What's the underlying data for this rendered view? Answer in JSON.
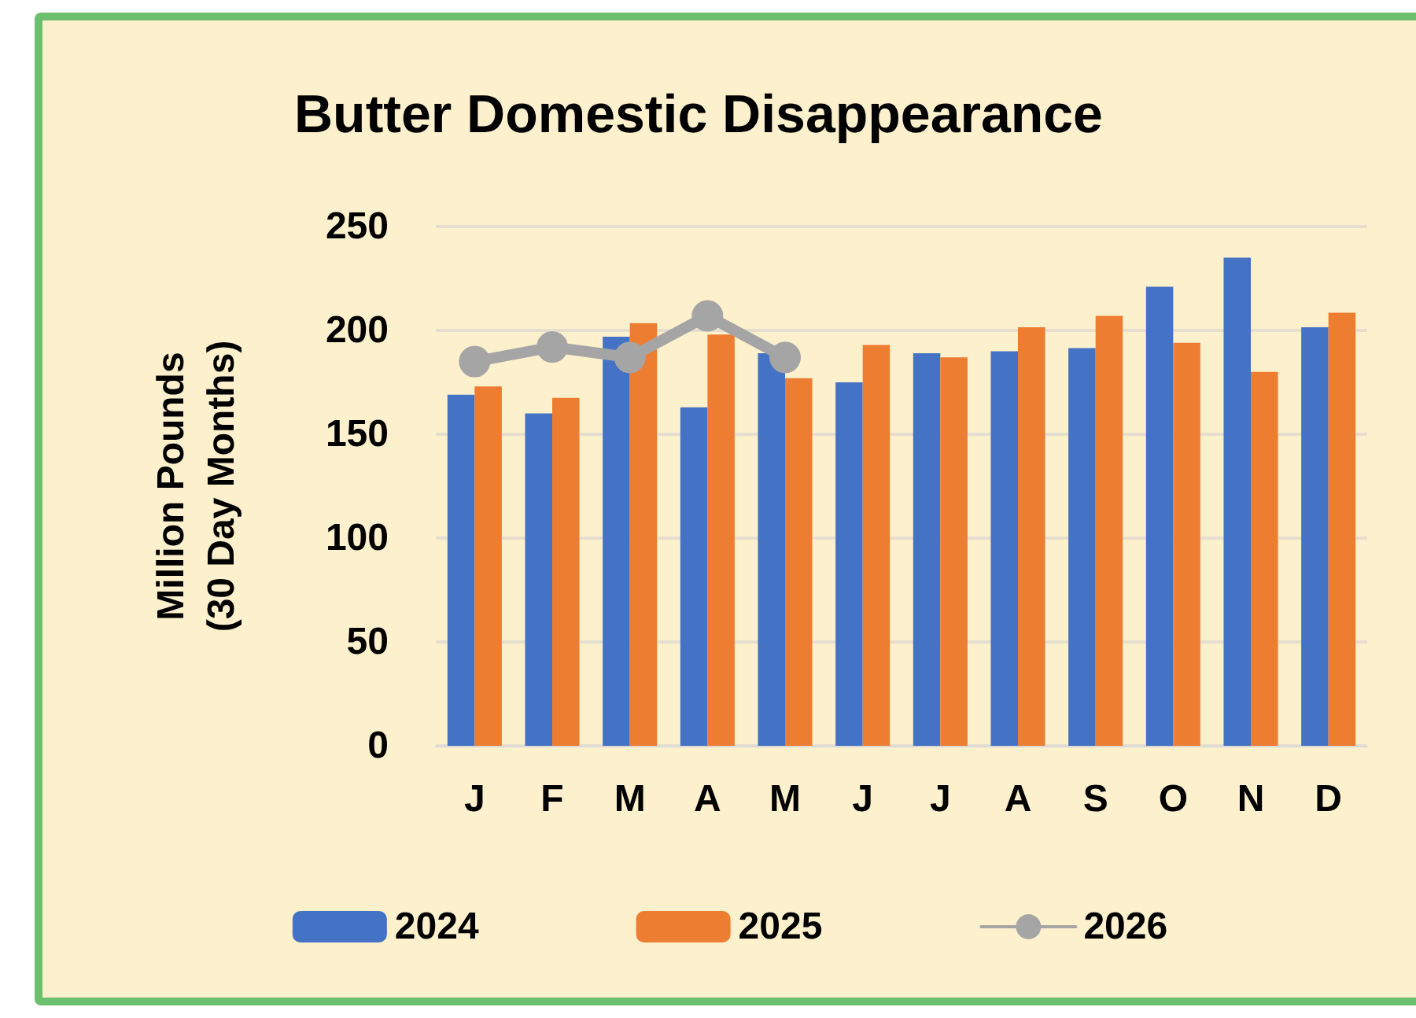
{
  "chart_data": {
    "type": "bar",
    "title": "Butter Domestic Disappearance",
    "ylabel": "Million Pounds\n(30 Day Months)",
    "categories": [
      "J",
      "F",
      "M",
      "A",
      "M",
      "J",
      "J",
      "A",
      "S",
      "O",
      "N",
      "D"
    ],
    "series": [
      {
        "name": "2024",
        "color": "#4472c4",
        "values": [
          169,
          160,
          197,
          163,
          189,
          175,
          189,
          190,
          191.5,
          221,
          235,
          201.5
        ]
      },
      {
        "name": "2025",
        "color": "#ed7d31",
        "values": [
          173,
          167.5,
          203.5,
          198,
          177,
          193,
          187,
          201.5,
          207,
          194,
          180,
          208.5
        ]
      },
      {
        "name": "2026",
        "type": "line",
        "color": "#a5a5a5",
        "values": [
          185,
          192,
          187,
          207,
          187,
          null,
          null,
          null,
          null,
          null,
          null,
          null
        ]
      }
    ],
    "ylim": [
      0,
      250
    ],
    "yticks": [
      0,
      50,
      100,
      150,
      200,
      250
    ],
    "grid": "y",
    "legend": "bottom",
    "marker": "circle",
    "line_style": "solid"
  }
}
